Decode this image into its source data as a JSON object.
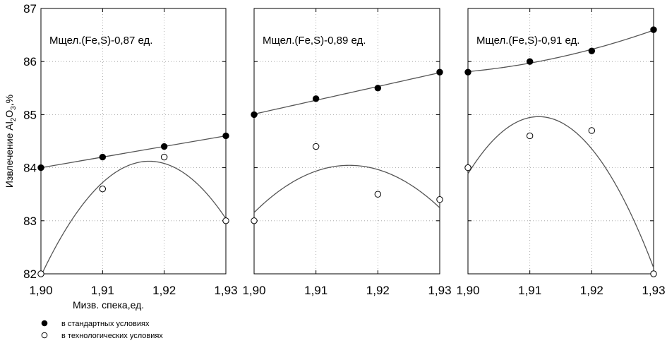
{
  "chart_data": {
    "type": "scatter",
    "ylabel_parts": [
      "Извлечение Al",
      "2",
      "O",
      "3",
      ",%"
    ],
    "xlabel": "Мизв. спека,ед.",
    "ylim": [
      82,
      87
    ],
    "yticks": [
      "82",
      "83",
      "84",
      "85",
      "86",
      "87"
    ],
    "xlim": [
      1.9,
      1.93
    ],
    "xticks": [
      "1,90",
      "1,91",
      "1,92",
      "1,93"
    ],
    "x": [
      1.9,
      1.91,
      1.92,
      1.93
    ],
    "legend": {
      "standard": "в стандартных условиях",
      "technological": "в технологических условиях"
    },
    "panels": [
      {
        "annotation": "Мщел.(Fe,S)-0,87 ед.",
        "standard": [
          84.0,
          84.2,
          84.4,
          84.6
        ],
        "technological": [
          82.0,
          83.6,
          84.2,
          83.0
        ],
        "standard_fit": "linear",
        "technological_fit": "quadratic"
      },
      {
        "annotation": "Мщел.(Fe,S)-0,89 ед.",
        "standard": [
          85.0,
          85.3,
          85.5,
          85.8
        ],
        "technological": [
          83.0,
          84.4,
          83.5,
          83.4
        ],
        "standard_fit": "linear",
        "technological_fit": "quadratic"
      },
      {
        "annotation": "Мщел.(Fe,S)-0,91 ед.",
        "standard": [
          85.8,
          86.0,
          86.2,
          86.6
        ],
        "technological": [
          84.0,
          84.6,
          84.7,
          82.0
        ],
        "standard_fit": "quadratic",
        "technological_fit": "quadratic"
      }
    ]
  }
}
